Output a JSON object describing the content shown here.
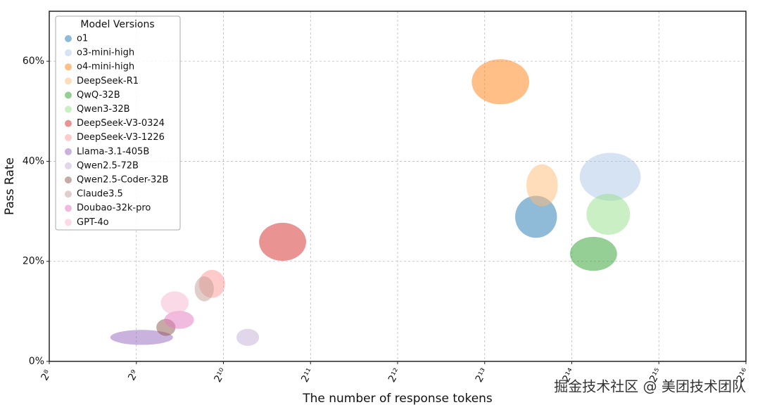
{
  "chart_data": {
    "type": "ellipse_scatter",
    "x_label": "The number of response tokens",
    "y_label": "Pass Rate",
    "legend_title": "Model Versions",
    "legend_position": "upper left",
    "grid": true,
    "xscale": "log2",
    "xlim": [
      256,
      65536
    ],
    "xticks": [
      {
        "value": 256,
        "label": "2⁸"
      },
      {
        "value": 512,
        "label": "2⁹"
      },
      {
        "value": 1024,
        "label": "2¹⁰"
      },
      {
        "value": 2048,
        "label": "2¹¹"
      },
      {
        "value": 4096,
        "label": "2¹²"
      },
      {
        "value": 8192,
        "label": "2¹³"
      },
      {
        "value": 16384,
        "label": "2¹⁴"
      },
      {
        "value": 32768,
        "label": "2¹⁵"
      },
      {
        "value": 65536,
        "label": "2¹⁶"
      }
    ],
    "ylim": [
      0,
      70
    ],
    "yticks": [
      {
        "value": 0,
        "label": "0%"
      },
      {
        "value": 20,
        "label": "20%"
      },
      {
        "value": 40,
        "label": "40%"
      },
      {
        "value": 60,
        "label": "60%"
      }
    ],
    "series": [
      {
        "name": "o1",
        "color": "#1f77b4",
        "x": [
          12330
        ],
        "values": [
          28.9
        ],
        "x_err": [
          0.24
        ],
        "y_err": [
          4.2
        ]
      },
      {
        "name": "o3-mini-high",
        "color": "#aec7e8",
        "x": [
          22250
        ],
        "values": [
          36.9
        ],
        "x_err": [
          0.35
        ],
        "y_err": [
          4.8
        ]
      },
      {
        "name": "o4-mini-high",
        "color": "#ff7f0e",
        "x": [
          9290
        ],
        "values": [
          55.9
        ],
        "x_err": [
          0.33
        ],
        "y_err": [
          4.5
        ]
      },
      {
        "name": "DeepSeek-R1",
        "color": "#ffbb78",
        "x": [
          12940
        ],
        "values": [
          35.2
        ],
        "x_err": [
          0.18
        ],
        "y_err": [
          4.2
        ]
      },
      {
        "name": "QwQ-32B",
        "color": "#2ca02c",
        "x": [
          19480
        ],
        "values": [
          21.5
        ],
        "x_err": [
          0.27
        ],
        "y_err": [
          3.4
        ]
      },
      {
        "name": "Qwen3-32B",
        "color": "#98df8a",
        "x": [
          21900
        ],
        "values": [
          29.4
        ],
        "x_err": [
          0.25
        ],
        "y_err": [
          4.1
        ]
      },
      {
        "name": "DeepSeek-V3-0324",
        "color": "#d62728",
        "x": [
          1640
        ],
        "values": [
          23.9
        ],
        "x_err": [
          0.27
        ],
        "y_err": [
          3.8
        ]
      },
      {
        "name": "DeepSeek-V3-1226",
        "color": "#ff9896",
        "x": [
          935
        ],
        "values": [
          15.5
        ],
        "x_err": [
          0.15
        ],
        "y_err": [
          2.8
        ]
      },
      {
        "name": "Llama-3.1-405B",
        "color": "#9467bd",
        "x": [
          534
        ],
        "values": [
          4.8
        ],
        "x_err": [
          0.36
        ],
        "y_err": [
          1.5
        ]
      },
      {
        "name": "Qwen2.5-72B",
        "color": "#c5b0d5",
        "x": [
          1243
        ],
        "values": [
          4.8
        ],
        "x_err": [
          0.13
        ],
        "y_err": [
          1.7
        ]
      },
      {
        "name": "Qwen2.5-Coder-32B",
        "color": "#8c564b",
        "x": [
          648
        ],
        "values": [
          6.8
        ],
        "x_err": [
          0.11
        ],
        "y_err": [
          1.7
        ]
      },
      {
        "name": "Claude3.5",
        "color": "#c49c94",
        "x": [
          879
        ],
        "values": [
          14.5
        ],
        "x_err": [
          0.11
        ],
        "y_err": [
          2.5
        ]
      },
      {
        "name": "Doubao-32k-pro",
        "color": "#e377c2",
        "x": [
          720
        ],
        "values": [
          8.3
        ],
        "x_err": [
          0.17
        ],
        "y_err": [
          1.8
        ]
      },
      {
        "name": "GPT-4o",
        "color": "#f7b6d2",
        "x": [
          695
        ],
        "values": [
          11.7
        ],
        "x_err": [
          0.16
        ],
        "y_err": [
          2.3
        ]
      }
    ],
    "watermark": "掘金技术社区 @ 美团技术团队"
  }
}
